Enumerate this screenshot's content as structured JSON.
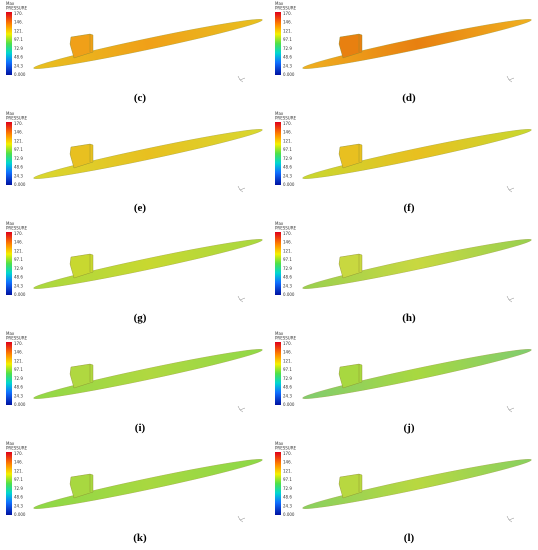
{
  "colorbar": {
    "title": [
      "Max",
      "PRESSURE"
    ],
    "ticks": [
      "170.",
      "146.",
      "121.",
      "97.1",
      "72.9",
      "48.6",
      "24.3",
      "0.000"
    ]
  },
  "panels": [
    {
      "label": "(c)"
    },
    {
      "label": "(d)"
    },
    {
      "label": "(e)"
    },
    {
      "label": "(f)"
    },
    {
      "label": "(g)"
    },
    {
      "label": "(h)"
    },
    {
      "label": "(i)"
    },
    {
      "label": "(j)"
    },
    {
      "label": "(k)"
    },
    {
      "label": "(l)"
    }
  ]
}
